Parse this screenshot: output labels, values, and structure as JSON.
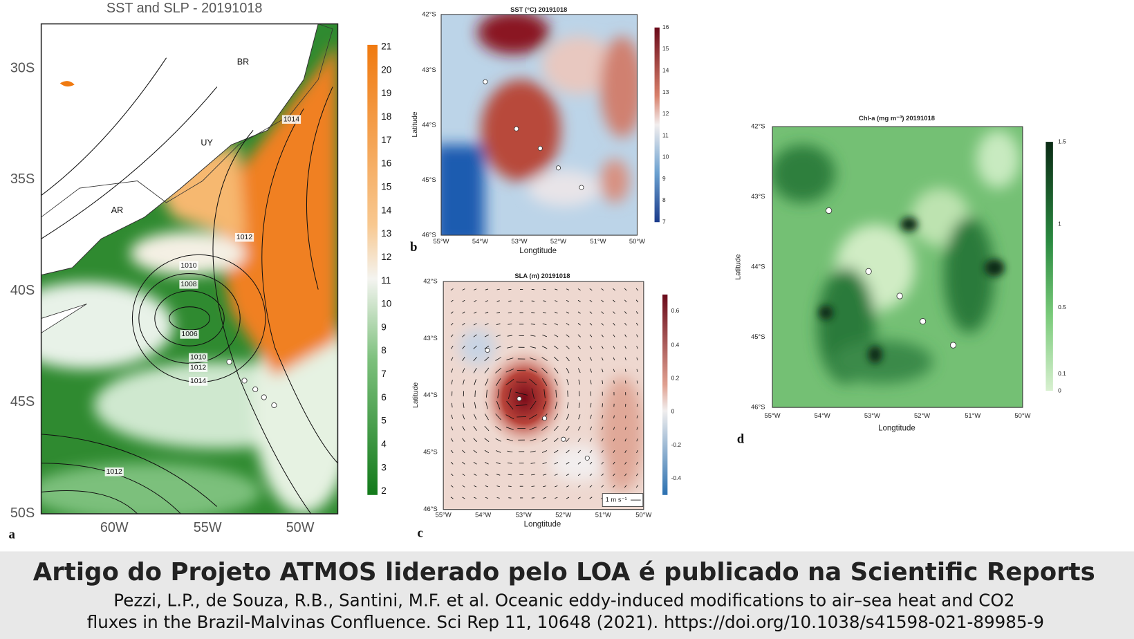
{
  "panels": [
    {
      "letter": "a",
      "title": "SST and SLP - 20191018",
      "y_ticks": [
        "30S",
        "35S",
        "40S",
        "45S",
        "50S"
      ],
      "x_ticks": [
        "60W",
        "55W",
        "50W"
      ],
      "colorbar_ticks": [
        "21",
        "20",
        "19",
        "18",
        "17",
        "16",
        "15",
        "14",
        "13",
        "12",
        "11",
        "10",
        "9",
        "8",
        "7",
        "6",
        "5",
        "4",
        "3",
        "2"
      ],
      "map_labels": [
        "BR",
        "UY",
        "AR"
      ],
      "contour_labels": [
        "1014",
        "1012",
        "1010",
        "1008",
        "1006",
        "1010",
        "1012",
        "1014",
        "1012"
      ]
    },
    {
      "letter": "b",
      "title": "SST (°C) 20191018",
      "x_label": "Longtitude",
      "y_label": "Latitude",
      "y_ticks": [
        "42°S",
        "43°S",
        "44°S",
        "45°S",
        "46°S"
      ],
      "x_ticks": [
        "55°W",
        "54°W",
        "53°W",
        "52°W",
        "51°W",
        "50°W"
      ],
      "colorbar_ticks": [
        "16",
        "15",
        "14",
        "13",
        "12",
        "11",
        "10",
        "9",
        "8",
        "7"
      ]
    },
    {
      "letter": "c",
      "title": "SLA (m) 20191018",
      "x_label": "Longtitude",
      "y_label": "Latitude",
      "y_ticks": [
        "42°S",
        "43°S",
        "44°S",
        "45°S",
        "46°S"
      ],
      "x_ticks": [
        "55°W",
        "54°W",
        "53°W",
        "52°W",
        "51°W",
        "50°W"
      ],
      "colorbar_ticks": [
        "0.6",
        "0.4",
        "0.2",
        "0",
        "-0.2",
        "-0.4"
      ],
      "scale_label": "1 m s⁻¹"
    },
    {
      "letter": "d",
      "title": "Chl-a (mg m⁻³) 20191018",
      "x_label": "Longtitude",
      "y_label": "Latitude",
      "y_ticks": [
        "42°S",
        "43°S",
        "44°S",
        "45°S",
        "46°S"
      ],
      "x_ticks": [
        "55°W",
        "54°W",
        "53°W",
        "52°W",
        "51°W",
        "50°W"
      ],
      "colorbar_ticks": [
        "1.5",
        "1",
        "0.5",
        "0.1",
        "0"
      ]
    }
  ],
  "caption": {
    "headline": "Artigo do Projeto ATMOS liderado pelo LOA é publicado na Scientific Reports",
    "citation": [
      "Pezzi, L.P., de Souza, R.B., Santini, M.F. et al. Oceanic eddy-induced modifications to air–sea heat and CO2",
      "fluxes in the Brazil-Malvinas Confluence. Sci Rep 11, 10648 (2021). https://doi.org/10.1038/s41598-021-89985-9"
    ]
  }
}
